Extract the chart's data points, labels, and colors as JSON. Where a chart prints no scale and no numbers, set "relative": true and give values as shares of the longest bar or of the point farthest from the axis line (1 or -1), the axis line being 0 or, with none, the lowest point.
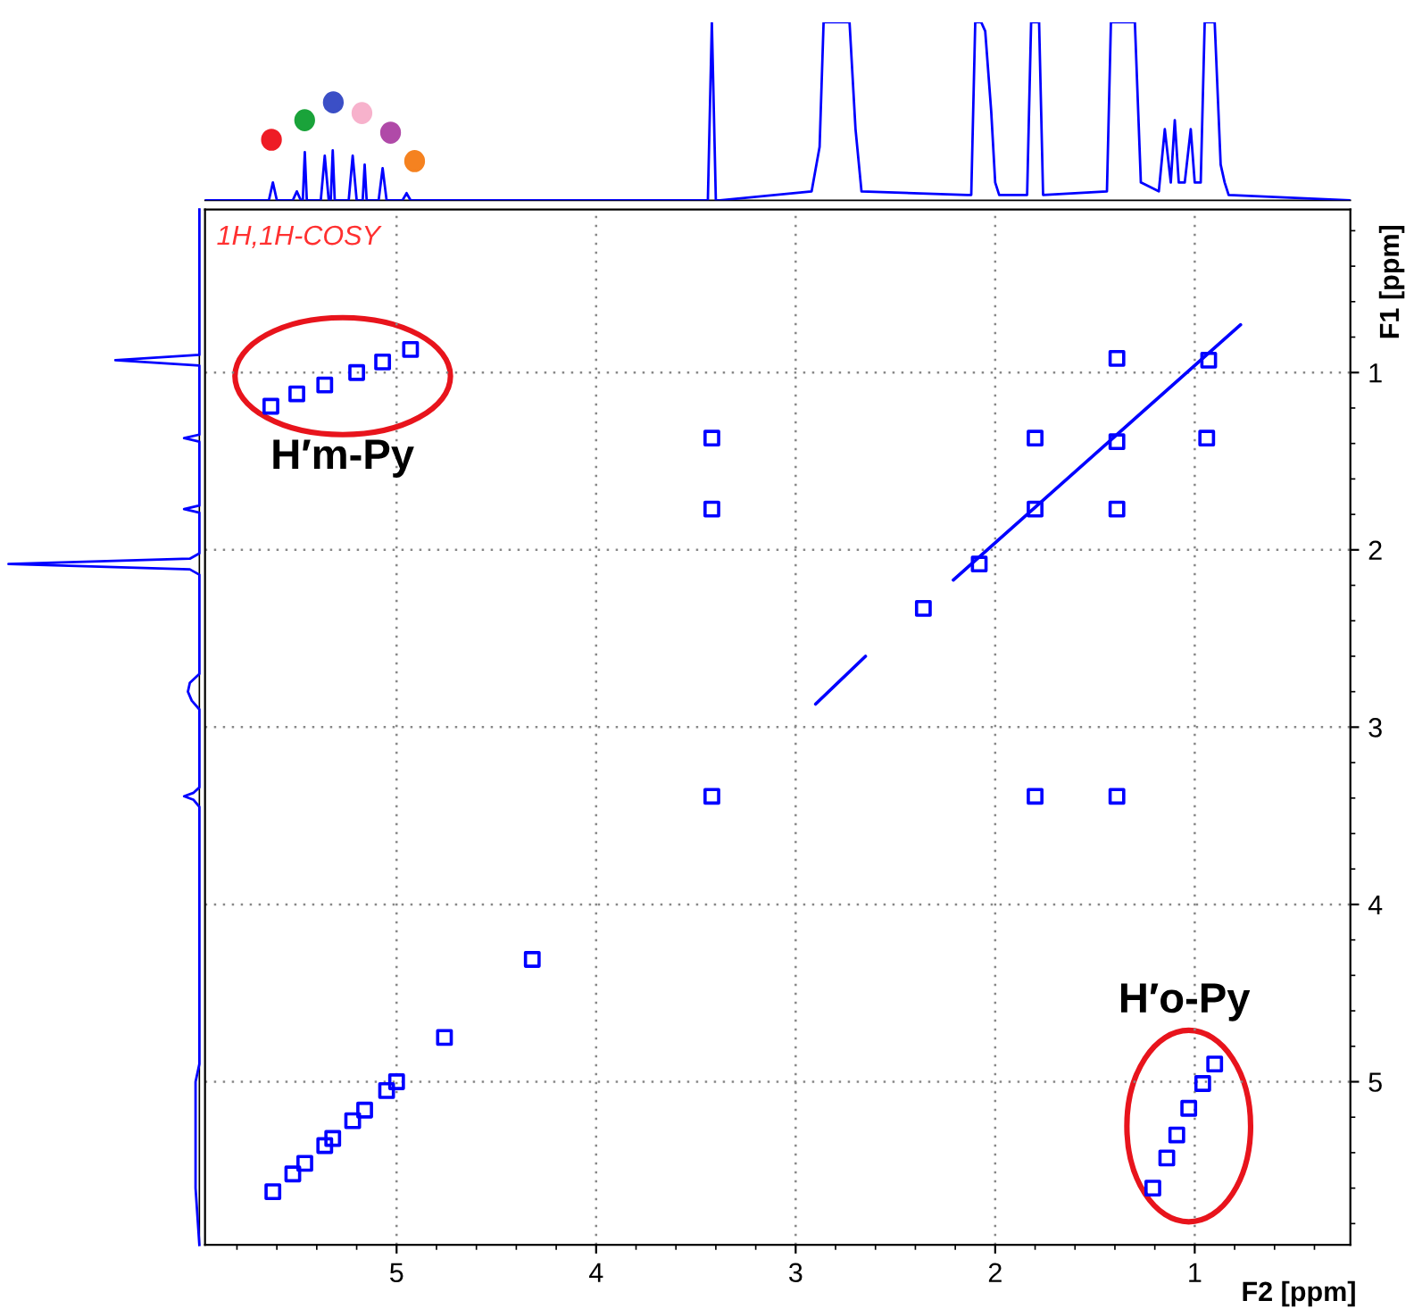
{
  "chart_data": [
    {
      "type": "line",
      "relative": true,
      "xlim": [
        5.96,
        0.22
      ],
      "tick_labels": false,
      "x": [
        5.96,
        5.64,
        5.62,
        5.6,
        5.52,
        5.5,
        5.48,
        5.47,
        5.46,
        5.45,
        5.38,
        5.36,
        5.34,
        5.33,
        5.32,
        5.31,
        5.24,
        5.22,
        5.2,
        5.17,
        5.16,
        5.15,
        5.09,
        5.07,
        5.05,
        4.97,
        4.95,
        4.93,
        3.46,
        3.44,
        3.42,
        3.4,
        3.38,
        2.92,
        2.88,
        2.86,
        2.85,
        2.83,
        2.8,
        2.78,
        2.76,
        2.73,
        2.7,
        2.67,
        2.14,
        2.12,
        2.1,
        2.07,
        2.05,
        2.02,
        2.0,
        1.98,
        1.84,
        1.82,
        1.8,
        1.78,
        1.76,
        1.44,
        1.42,
        1.4,
        1.37,
        1.35,
        1.32,
        1.3,
        1.27,
        1.18,
        1.15,
        1.12,
        1.1,
        1.08,
        1.05,
        1.02,
        1.0,
        0.97,
        0.95,
        0.93,
        0.9,
        0.87,
        0.85,
        0.83,
        0.22
      ],
      "series": [
        {
          "color": "#0000ff",
          "values": [
            0,
            0,
            0.1,
            0,
            0,
            0.05,
            0,
            0,
            0.27,
            0,
            0,
            0.25,
            0,
            0,
            0.28,
            0,
            0,
            0.25,
            0,
            0,
            0.2,
            0,
            0,
            0.18,
            0,
            0,
            0.04,
            0,
            0,
            0,
            1,
            0,
            0,
            0.05,
            0.3,
            1,
            1,
            1,
            1,
            1,
            1,
            1,
            0.4,
            0.05,
            0.03,
            0.03,
            1,
            1,
            0.95,
            0.5,
            0.1,
            0.03,
            0.03,
            1,
            1,
            1,
            0.03,
            0.05,
            1,
            1,
            1,
            1,
            1,
            1,
            0.1,
            0.05,
            0.4,
            0.1,
            0.45,
            0.1,
            0.1,
            0.4,
            0.1,
            0.1,
            1,
            1,
            1,
            0.2,
            0.1,
            0.03,
            0
          ]
        }
      ]
    },
    {
      "type": "line",
      "relative": true,
      "orientation": "horizontal",
      "ylim": [
        5.92,
        0.08
      ],
      "tick_labels": false,
      "x": [
        0.08,
        0.85,
        0.9,
        0.93,
        0.96,
        1.0,
        1.3,
        1.35,
        1.37,
        1.39,
        1.45,
        1.72,
        1.75,
        1.77,
        1.79,
        1.85,
        2.02,
        2.05,
        2.08,
        2.11,
        2.14,
        2.7,
        2.75,
        2.8,
        2.85,
        2.9,
        3.34,
        3.37,
        3.39,
        3.41,
        3.45,
        4.9,
        5.0,
        5.2,
        5.4,
        5.6,
        5.92
      ],
      "series": [
        {
          "color": "#0000ff",
          "values": [
            0,
            0,
            0,
            -0.44,
            0,
            0,
            0,
            0,
            -0.08,
            0,
            0,
            0,
            0,
            -0.08,
            0,
            0,
            0,
            -0.05,
            -1,
            -0.05,
            0,
            0,
            -0.05,
            -0.06,
            -0.04,
            0,
            0,
            -0.03,
            -0.08,
            -0.03,
            0,
            0,
            -0.02,
            -0.02,
            -0.02,
            -0.02,
            0
          ]
        }
      ]
    },
    {
      "type": "scatter",
      "xlabel": "F2 [ppm]",
      "ylabel": "F1 [ppm]",
      "xlim": [
        5.96,
        0.22
      ],
      "ylim": [
        5.92,
        0.08
      ],
      "xticks": [
        5,
        4,
        3,
        2,
        1
      ],
      "yticks": [
        1,
        2,
        3,
        4,
        5
      ],
      "grid": true,
      "annotations": [
        "1H,1H-COSY",
        "H′m-Py",
        "H′o-Py"
      ],
      "series": [
        {
          "color": "#0000ff",
          "marker": "square",
          "x": [
            0.93,
            1.39,
            1.8,
            2.08,
            2.36,
            1.39,
            1.8,
            0.94,
            3.42,
            3.42,
            1.39,
            3.42,
            1.8,
            1.39,
            4.32,
            4.76,
            5.0,
            5.05,
            5.16,
            5.22,
            5.32,
            5.36,
            5.46,
            5.52,
            5.62,
            0.9,
            0.96,
            1.03,
            1.09,
            1.14,
            1.21,
            4.93,
            5.07,
            5.2,
            5.36,
            5.5,
            5.63
          ],
          "values": [
            0.93,
            1.39,
            1.77,
            2.08,
            2.33,
            0.92,
            1.37,
            1.37,
            1.37,
            1.77,
            1.77,
            3.39,
            3.39,
            3.39,
            4.31,
            4.75,
            5.0,
            5.05,
            5.16,
            5.22,
            5.32,
            5.36,
            5.46,
            5.52,
            5.62,
            4.9,
            5.01,
            5.15,
            5.3,
            5.43,
            5.6,
            0.87,
            0.94,
            1.0,
            1.07,
            1.12,
            1.19
          ]
        },
        {
          "type": "line",
          "color": "#0000ff",
          "x": [
            0.77,
            2.21
          ],
          "values": [
            0.73,
            2.17
          ]
        },
        {
          "type": "line",
          "color": "#0000ff",
          "x": [
            2.65,
            2.9
          ],
          "values": [
            2.6,
            2.87
          ]
        }
      ]
    }
  ]
}
